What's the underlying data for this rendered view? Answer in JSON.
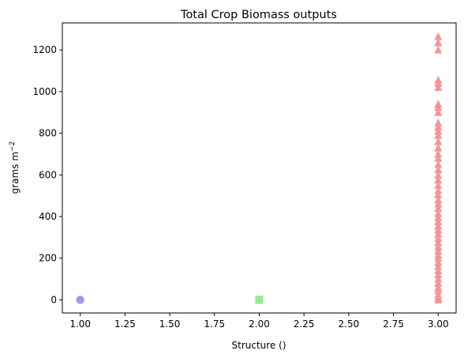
{
  "chart_data": {
    "type": "scatter",
    "title": "Total Crop Biomass outputs",
    "xlabel": "Structure ()",
    "ylabel_main": "grams m",
    "ylabel_sup": "−2",
    "xlim": [
      0.9,
      3.1
    ],
    "ylim": [
      -63,
      1330
    ],
    "xticks": [
      1.0,
      1.25,
      1.5,
      1.75,
      2.0,
      2.25,
      2.5,
      2.75,
      3.0
    ],
    "xtick_labels": [
      "1.00",
      "1.25",
      "1.50",
      "1.75",
      "2.00",
      "2.25",
      "2.50",
      "2.75",
      "3.00"
    ],
    "yticks": [
      0,
      200,
      400,
      600,
      800,
      1000,
      1200
    ],
    "ytick_labels": [
      "0",
      "200",
      "400",
      "600",
      "800",
      "1000",
      "1200"
    ],
    "grid": false,
    "series": [
      {
        "marker": "circle",
        "color": "#9a9aea",
        "points": [
          [
            1,
            0
          ],
          [
            1,
            0
          ],
          [
            1,
            0
          ],
          [
            1,
            0
          ],
          [
            1,
            0
          ]
        ]
      },
      {
        "marker": "square",
        "color": "#90ee90",
        "points": [
          [
            2,
            0
          ],
          [
            2,
            0
          ],
          [
            2,
            0
          ],
          [
            2,
            0
          ],
          [
            2,
            0
          ]
        ]
      },
      {
        "marker": "triangle",
        "color": "#f79494",
        "points": [
          [
            3,
            0
          ],
          [
            3,
            10
          ],
          [
            3,
            25
          ],
          [
            3,
            45
          ],
          [
            3,
            60
          ],
          [
            3,
            80
          ],
          [
            3,
            100
          ],
          [
            3,
            120
          ],
          [
            3,
            140
          ],
          [
            3,
            160
          ],
          [
            3,
            180
          ],
          [
            3,
            200
          ],
          [
            3,
            215
          ],
          [
            3,
            235
          ],
          [
            3,
            255
          ],
          [
            3,
            275
          ],
          [
            3,
            295
          ],
          [
            3,
            315
          ],
          [
            3,
            335
          ],
          [
            3,
            355
          ],
          [
            3,
            375
          ],
          [
            3,
            395
          ],
          [
            3,
            415
          ],
          [
            3,
            440
          ],
          [
            3,
            460
          ],
          [
            3,
            480
          ],
          [
            3,
            505
          ],
          [
            3,
            525
          ],
          [
            3,
            550
          ],
          [
            3,
            575
          ],
          [
            3,
            600
          ],
          [
            3,
            625
          ],
          [
            3,
            650
          ],
          [
            3,
            680
          ],
          [
            3,
            700
          ],
          [
            3,
            730
          ],
          [
            3,
            760
          ],
          [
            3,
            790
          ],
          [
            3,
            810
          ],
          [
            3,
            830
          ],
          [
            3,
            850
          ],
          [
            3,
            900
          ],
          [
            3,
            925
          ],
          [
            3,
            940
          ],
          [
            3,
            1020
          ],
          [
            3,
            1040
          ],
          [
            3,
            1055
          ],
          [
            3,
            1200
          ],
          [
            3,
            1235
          ],
          [
            3,
            1265
          ]
        ]
      }
    ]
  }
}
